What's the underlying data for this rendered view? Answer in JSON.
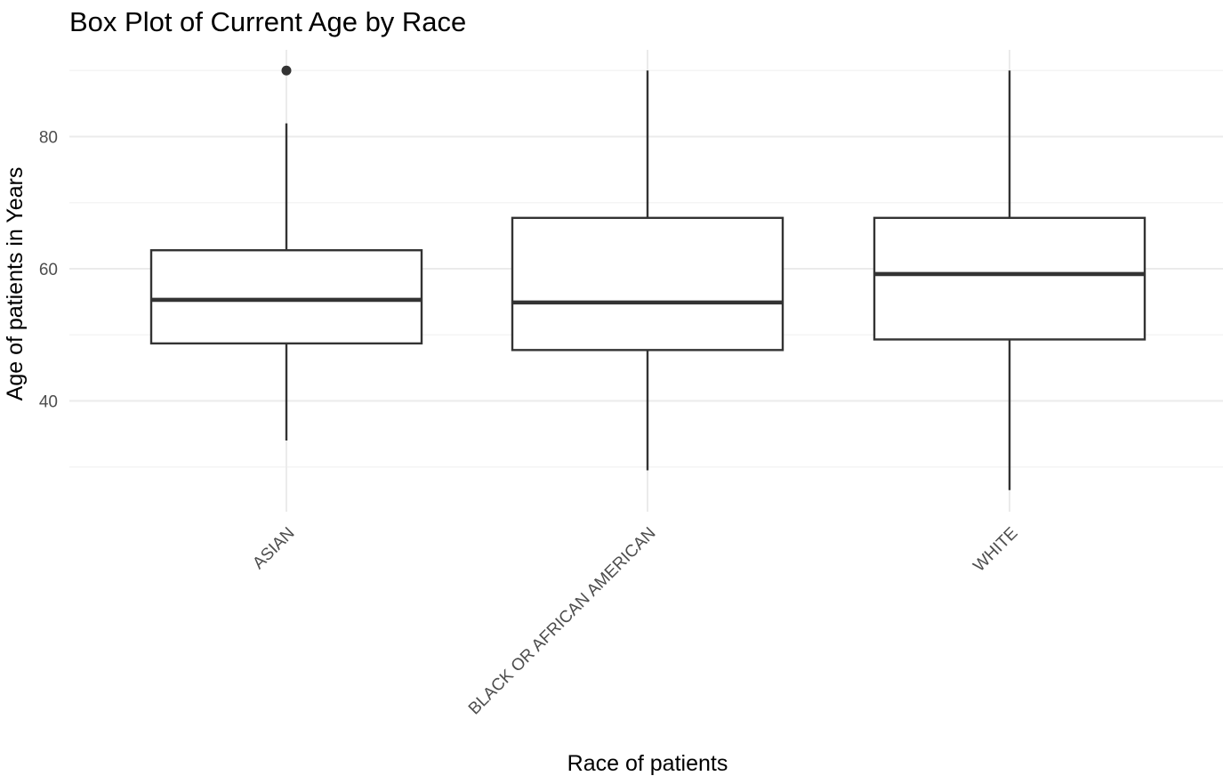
{
  "chart_data": {
    "type": "box",
    "title": "Box Plot of Current Age by Race",
    "xlabel": "Race of patients",
    "ylabel": "Age of patients in Years",
    "ylim": [
      23,
      93
    ],
    "yticks": [
      40,
      60,
      80
    ],
    "grid": true,
    "categories": [
      "ASIAN",
      "BLACK OR AFRICAN AMERICAN",
      "WHITE"
    ],
    "boxes": [
      {
        "category": "ASIAN",
        "whisker_low": 34,
        "q1": 48.7,
        "median": 55.3,
        "q3": 62.8,
        "whisker_high": 82,
        "outliers": [
          90
        ]
      },
      {
        "category": "BLACK OR AFRICAN AMERICAN",
        "whisker_low": 29.5,
        "q1": 47.7,
        "median": 54.9,
        "q3": 67.7,
        "whisker_high": 90,
        "outliers": []
      },
      {
        "category": "WHITE",
        "whisker_low": 26.5,
        "q1": 49.3,
        "median": 59.2,
        "q3": 67.7,
        "whisker_high": 90,
        "outliers": []
      }
    ]
  }
}
